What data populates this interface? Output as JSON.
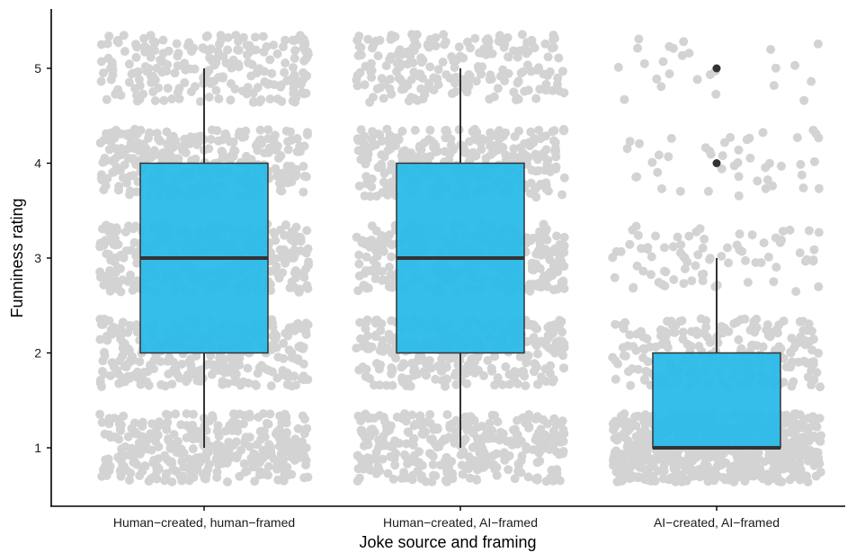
{
  "chart_data": {
    "type": "boxplot",
    "xlabel": "Joke source and framing",
    "ylabel": "Funniness rating",
    "ylim": [
      0.5,
      5.5
    ],
    "yticks": [
      1,
      2,
      3,
      4,
      5
    ],
    "grid": false,
    "jitter_points": true,
    "colors": {
      "box_fill": "#2bbbe9",
      "box_stroke": "#333333",
      "jitter": "#d3d3d3",
      "outlier": "#333333",
      "axis": "#000000"
    },
    "categories": [
      "Human−created, human−framed",
      "Human−created, AI−framed",
      "AI−created, AI−framed"
    ],
    "series": [
      {
        "category": "Human−created, human−framed",
        "whisker_low": 1,
        "q1": 2,
        "median": 3,
        "q3": 4,
        "whisker_high": 5,
        "outliers": [],
        "rating_counts": {
          "1": 340,
          "2": 300,
          "3": 320,
          "4": 300,
          "5": 220
        }
      },
      {
        "category": "Human−created, AI−framed",
        "whisker_low": 1,
        "q1": 2,
        "median": 3,
        "q3": 4,
        "whisker_high": 5,
        "outliers": [],
        "rating_counts": {
          "1": 330,
          "2": 300,
          "3": 310,
          "4": 290,
          "5": 210
        }
      },
      {
        "category": "AI−created, AI−framed",
        "whisker_low": 1,
        "q1": 1,
        "median": 1,
        "q3": 2,
        "whisker_high": 3,
        "outliers": [
          4,
          5
        ],
        "rating_counts": {
          "1": 700,
          "2": 230,
          "3": 80,
          "4": 45,
          "5": 25
        }
      }
    ]
  }
}
